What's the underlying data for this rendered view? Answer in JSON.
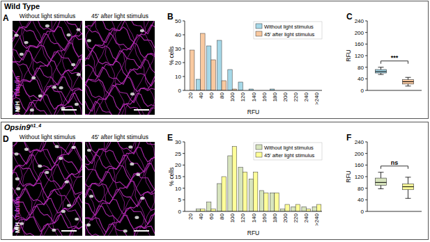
{
  "figure": {
    "panels": [
      {
        "letter": "A",
        "title": "Wild Type",
        "image_labels": [
          "Without light stimulus",
          "45' after light stimulus"
        ],
        "stains": [
          "MIH",
          "Tubulin"
        ]
      },
      {
        "letter": "D",
        "title": "Opsin9",
        "title_superscript": "n1_4",
        "image_labels": [
          "Without light stimulus",
          "45' after light stimulus"
        ],
        "stains": [
          "MIH",
          "Tubulin"
        ]
      }
    ]
  },
  "chart_data": [
    {
      "type": "bar",
      "panel": "B",
      "categories": [
        "20",
        "40",
        "60",
        "80",
        "100",
        "120",
        "140",
        "160",
        "180",
        "200",
        "220",
        "240",
        ">240"
      ],
      "series": [
        {
          "name": "Without light stimulus",
          "color": "#a6d8e8",
          "values": [
            0,
            8,
            32,
            36,
            15,
            6,
            1,
            0,
            1,
            0,
            0,
            0,
            0
          ]
        },
        {
          "name": "45' after light stimulus",
          "color": "#f9c9a0",
          "values": [
            29,
            41,
            22,
            7,
            1,
            0,
            0,
            0,
            0,
            0,
            0,
            0,
            0
          ]
        }
      ],
      "x_label": "RFU",
      "y_label": "% cells",
      "ylim": [
        0,
        50
      ],
      "yticks": [
        0,
        10,
        20,
        30,
        40,
        50
      ],
      "legend": "top-right",
      "grid": false
    },
    {
      "type": "box",
      "panel": "C",
      "categories": [
        null,
        null
      ],
      "colors": [
        "#a6d8e8",
        "#f9c9a0"
      ],
      "boxes": [
        {
          "min": 55,
          "q1": 60,
          "median": 65,
          "q3": 72,
          "max": 80
        },
        {
          "min": 15,
          "q1": 22,
          "median": 30,
          "q3": 37,
          "max": 45
        }
      ],
      "y_label": "RFU",
      "ylim": [
        0,
        240
      ],
      "yticks": [
        0,
        40,
        80,
        120,
        160,
        200,
        240
      ],
      "annotation": "***",
      "grid": false
    },
    {
      "type": "bar",
      "panel": "E",
      "categories": [
        "20",
        "40",
        "60",
        "80",
        "100",
        "120",
        "140",
        "160",
        "180",
        "200",
        "220",
        "240",
        ">240"
      ],
      "series": [
        {
          "name": "Without light stimulus",
          "color": "#d7e4bd",
          "values": [
            0,
            1,
            4,
            12,
            24,
            19,
            14,
            9,
            8,
            1,
            2,
            2,
            2
          ]
        },
        {
          "name": "45' after light stimulus",
          "color": "#ffff99",
          "values": [
            0,
            1,
            1,
            15,
            28,
            17,
            17,
            8,
            8,
            3,
            3,
            1,
            3
          ]
        }
      ],
      "x_label": "RFU",
      "y_label": "% cells",
      "ylim": [
        0,
        30
      ],
      "yticks": [
        0,
        5,
        10,
        15,
        20,
        25,
        30
      ],
      "legend": "top-right",
      "grid": false
    },
    {
      "type": "box",
      "panel": "F",
      "categories": [
        null,
        null
      ],
      "colors": [
        "#d7e4bd",
        "#ffff99"
      ],
      "boxes": [
        {
          "min": 78,
          "q1": 90,
          "median": 100,
          "q3": 115,
          "max": 135
        },
        {
          "min": 45,
          "q1": 75,
          "median": 85,
          "q3": 95,
          "max": 118
        }
      ],
      "y_label": "RFU",
      "ylim": [
        0,
        240
      ],
      "yticks": [
        0,
        40,
        80,
        120,
        160,
        200,
        240
      ],
      "annotation": "ns",
      "grid": false
    }
  ]
}
